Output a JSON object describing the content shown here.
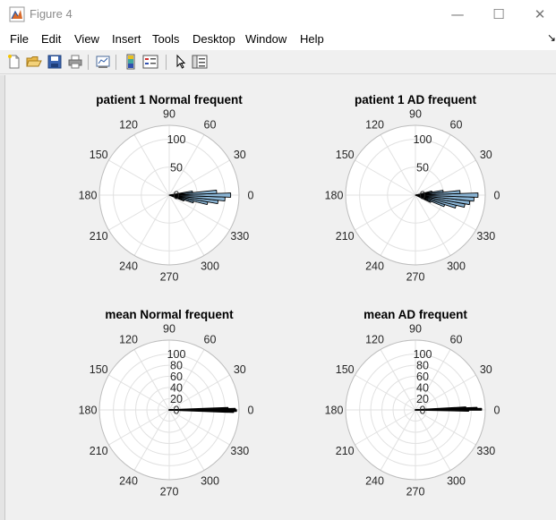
{
  "window": {
    "title": "Figure 4",
    "controls": {
      "minimize": "—",
      "maximize": "☐",
      "close": "✕"
    }
  },
  "menubar": {
    "items": [
      "File",
      "Edit",
      "View",
      "Insert",
      "Tools",
      "Desktop",
      "Window",
      "Help"
    ],
    "overflow_arrow": "↘"
  },
  "toolbar": {
    "icons": [
      "new-figure-icon",
      "open-file-icon",
      "save-icon",
      "print-icon",
      "link-plot-icon",
      "insert-colorbar-icon",
      "insert-legend-icon",
      "edit-plot-pointer-icon",
      "property-inspector-icon"
    ]
  },
  "chart_data": [
    {
      "type": "polar-histogram",
      "title": "patient 1 Normal frequent",
      "angle_ticks": [
        "0",
        "30",
        "60",
        "90",
        "120",
        "150",
        "180",
        "210",
        "240",
        "270",
        "300",
        "330"
      ],
      "radial_ticks": [
        "0",
        "50",
        "100"
      ],
      "rlim": [
        0,
        125
      ],
      "bar_color": "#8ab4d4",
      "bins": [
        {
          "angle_deg": -20,
          "width_deg": 4,
          "value": 28
        },
        {
          "angle_deg": -16,
          "width_deg": 4,
          "value": 45
        },
        {
          "angle_deg": -12,
          "width_deg": 4,
          "value": 70
        },
        {
          "angle_deg": -8,
          "width_deg": 4,
          "value": 88
        },
        {
          "angle_deg": -4,
          "width_deg": 4,
          "value": 100
        },
        {
          "angle_deg": 0,
          "width_deg": 4,
          "value": 110
        },
        {
          "angle_deg": 4,
          "width_deg": 4,
          "value": 85
        },
        {
          "angle_deg": 8,
          "width_deg": 4,
          "value": 42
        }
      ]
    },
    {
      "type": "polar-histogram",
      "title": "patient 1 AD frequent",
      "angle_ticks": [
        "0",
        "30",
        "60",
        "90",
        "120",
        "150",
        "180",
        "210",
        "240",
        "270",
        "300",
        "330"
      ],
      "radial_ticks": [
        "0",
        "50",
        "100"
      ],
      "rlim": [
        0,
        125
      ],
      "bar_color": "#8ab4d4",
      "bins": [
        {
          "angle_deg": -24,
          "width_deg": 4,
          "value": 30
        },
        {
          "angle_deg": -20,
          "width_deg": 4,
          "value": 55
        },
        {
          "angle_deg": -16,
          "width_deg": 4,
          "value": 75
        },
        {
          "angle_deg": -12,
          "width_deg": 4,
          "value": 90
        },
        {
          "angle_deg": -8,
          "width_deg": 4,
          "value": 98
        },
        {
          "angle_deg": -4,
          "width_deg": 4,
          "value": 105
        },
        {
          "angle_deg": 0,
          "width_deg": 4,
          "value": 112
        },
        {
          "angle_deg": 4,
          "width_deg": 4,
          "value": 80
        },
        {
          "angle_deg": 8,
          "width_deg": 4,
          "value": 50
        },
        {
          "angle_deg": 12,
          "width_deg": 4,
          "value": 30
        }
      ]
    },
    {
      "type": "polar-histogram",
      "title": "mean Normal frequent",
      "angle_ticks": [
        "0",
        "30",
        "60",
        "90",
        "120",
        "150",
        "180",
        "210",
        "240",
        "270",
        "300",
        "330"
      ],
      "radial_ticks": [
        "0",
        "20",
        "40",
        "60",
        "80",
        "100"
      ],
      "rlim": [
        0,
        125
      ],
      "bar_color": "#000000",
      "bins": [
        {
          "angle_deg": -1.5,
          "width_deg": 1.2,
          "value": 115
        },
        {
          "angle_deg": -0.5,
          "width_deg": 1.2,
          "value": 120
        },
        {
          "angle_deg": 0.5,
          "width_deg": 1.2,
          "value": 118
        },
        {
          "angle_deg": 1.5,
          "width_deg": 1.2,
          "value": 105
        }
      ]
    },
    {
      "type": "polar-histogram",
      "title": "mean AD frequent",
      "angle_ticks": [
        "0",
        "30",
        "60",
        "90",
        "120",
        "150",
        "180",
        "210",
        "240",
        "270",
        "300",
        "330"
      ],
      "radial_ticks": [
        "0",
        "20",
        "40",
        "60",
        "80",
        "100"
      ],
      "rlim": [
        0,
        125
      ],
      "bar_color": "#000000",
      "bins": [
        {
          "angle_deg": -0.5,
          "width_deg": 1.2,
          "value": 95
        },
        {
          "angle_deg": 0.5,
          "width_deg": 1.2,
          "value": 118
        },
        {
          "angle_deg": 1.5,
          "width_deg": 1.2,
          "value": 110
        },
        {
          "angle_deg": 2.5,
          "width_deg": 1.2,
          "value": 90
        }
      ]
    }
  ]
}
